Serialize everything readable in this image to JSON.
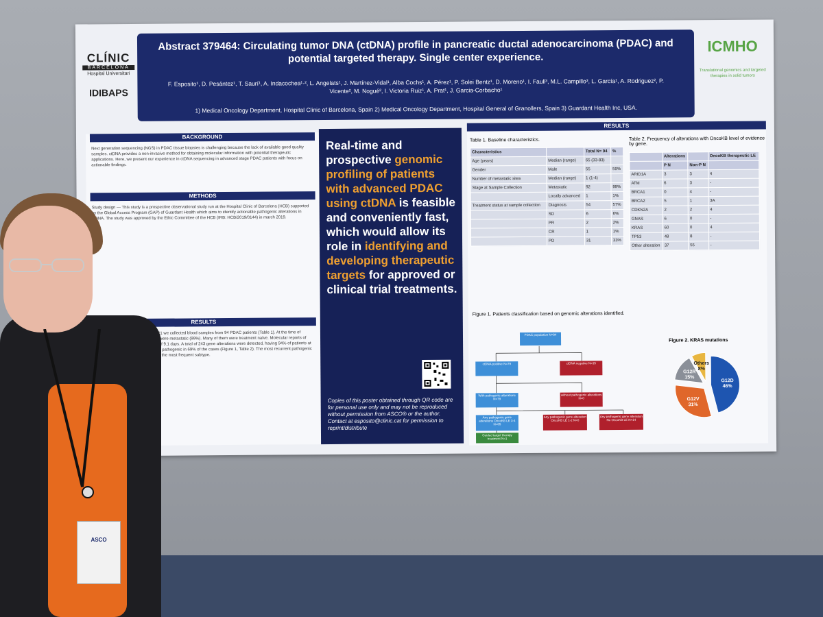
{
  "colors": {
    "navy": "#1c2a6b",
    "orange": "#f0a030",
    "accent_green": "#57a445"
  },
  "header": {
    "title": "Abstract 379464: Circulating tumor DNA (ctDNA) profile in pancreatic ductal adenocarcinoma (PDAC) and potential targeted therapy. Single center experience.",
    "authors": "F. Esposito¹, D. Pesántez¹, T. Saurí¹, A. Indacochea¹·², L. Angelats¹, J. Martínez-Vidal¹, Alba Cochs¹, A. Pérez¹, P. Solei Bentz¹, D. Moreno¹, I. Faull³, M.L. Campillo³, L. García¹, A. Rodriguez², P. Vicente², M. Nogué², I. Victoria Ruiz¹, A. Prat¹, J. Garcia-Corbacho¹",
    "affiliations": "1) Medical Oncology Department, Hospital Clinic of Barcelona, Spain 2) Medical Oncology Department, Hospital General of Granollers, Spain 3) Guardant Health Inc, USA."
  },
  "logos": {
    "left_1": "CLÍNIC",
    "left_2": "BARCELONA",
    "left_3": "Hospital Universitari",
    "left_4": "IDIBAPS",
    "right_1": "ICMHO",
    "right_2": "Translational genomics and targeted therapies in solid tumors"
  },
  "left": {
    "background_title": "BACKGROUND",
    "background_text": "Next generation sequencing (NGS) in PDAC tissue biopsies is challenging because the lack of available good quality samples. ctDNA provides a non-invasive method for obtaining molecular information with potential therapeutic applications. Here, we present our experience in ctDNA sequencing in advanced stage PDAC patients with focus on actionable findings.",
    "methods_title": "METHODS",
    "methods_text": "Study design — This study is a prospective observational study run at the Hospital Clinic of Barcelona (HCB) supported by the Global Access Program (GAP) of Guardant Health which aims to identify actionable pathogenic alterations in ctDNA. The study was approved by the Ethic Committee of the HCB (IRB: HCB/2019/0144) in march 2019.",
    "results_title": "RESULTS",
    "results_text": "From August/2019 to September/2021 we collected blood samples from 94 PDAC patients (Table 1). At the time of sample collection, nearly all patients were metastatic (99%). Many of them were treatment naïve. Molecular reports of ctDNA were available in an average of 9.1 days. A total of 243 gene alterations were detected, having 94% of patients at least 1 genomic alteration, which was pathogenic in 69% of the cases (Figure 1, Table 2). The most recurrent pathogenic alteration were KRAS and G12D was the most frequent subtype."
  },
  "middle": {
    "t1": "Real-time and prospective ",
    "h1": "genomic profiling of patients with advanced PDAC using ctDNA",
    "t2": " is feasible and conveniently fast, which would allow its role in ",
    "h2": "identifying and developing therapeutic targets",
    "t3": " for approved or clinical trial treatments.",
    "copy": "Copies of this poster obtained through QR code are for personal use only and may not be reproduced without permission from ASCO® or the author. Contact at esposito@clinic.cat for permission to reprint/distribute"
  },
  "right": {
    "results_title": "RESULTS",
    "table1_title": "Table 1. Baseline characteristics.",
    "table2_title": "Table 2. Frequency of alterations with OncoKB level of evidence by gene.",
    "fig1_title": "Figure 1. Patients classification based on genomic alterations identified.",
    "fig2_title": "Figure 2. KRAS mutations",
    "t1": {
      "hdr": [
        "Characteristics",
        "",
        "Total N= 94",
        "%"
      ],
      "rows": [
        [
          "Age (years)",
          "Median (range)",
          "65 (33-83)",
          ""
        ],
        [
          "Gender",
          "Male",
          "55",
          "59%"
        ],
        [
          "Number of metastatic sites",
          "Median (range)",
          "1 (1-4)",
          ""
        ],
        [
          "Stage at Sample Collection",
          "Metastatic",
          "92",
          "99%"
        ],
        [
          "",
          "Locally advanced",
          "1",
          "1%"
        ],
        [
          "Treatment status at sample collection",
          "Diagnosis",
          "54",
          "57%"
        ],
        [
          "",
          "SD",
          "6",
          "6%"
        ],
        [
          "",
          "PR",
          "2",
          "2%"
        ],
        [
          "",
          "CR",
          "1",
          "1%"
        ],
        [
          "",
          "PD",
          "31",
          "33%"
        ]
      ]
    },
    "t2": {
      "hdr": [
        "",
        "Alterations",
        "",
        "OncoKB therapeutic LE"
      ],
      "sub": [
        "",
        "P N",
        "Non-P N",
        ""
      ],
      "rows": [
        [
          "ARID1A",
          "3",
          "3",
          "4"
        ],
        [
          "ATM",
          "6",
          "3",
          "-"
        ],
        [
          "BRCA1",
          "0",
          "4",
          "-"
        ],
        [
          "BRCA2",
          "5",
          "1",
          "3A"
        ],
        [
          "CDKN2A",
          "2",
          "2",
          "4"
        ],
        [
          "GNAS",
          "6",
          "0",
          "-"
        ],
        [
          "KRAS",
          "60",
          "0",
          "4"
        ],
        [
          "TP53",
          "48",
          "8",
          "-"
        ],
        [
          "Other alteration",
          "37",
          "55",
          "-"
        ]
      ]
    },
    "flow": {
      "b1": "PDAC population N=94",
      "b2": "ctDNA positive N=79",
      "b3": "ctDNA negative N=15",
      "b4": "With pathogenic alterations N=79",
      "b5": "without pathogenic alterations N=0",
      "b6": "Any pathogenic gene alterations OncoKB LE 3-4 N=65",
      "b7": "Any pathogenic gene alteration OncoKB LE 1-2 N=0",
      "b8": "Any pathogenic gene alteration No OncoKB LE N=14",
      "b9": "Guided target therapy treatment N=1"
    }
  },
  "chart_data": {
    "type": "pie",
    "title": "Figure 2. KRAS mutations",
    "categories": [
      "G12D",
      "G12V",
      "G12R",
      "Others"
    ],
    "values": [
      46,
      31,
      15,
      8
    ],
    "labels": [
      "G12D 46%",
      "G12V 31%",
      "G12R 15%",
      "Others 8%"
    ],
    "colors": [
      "#1e55b0",
      "#e0672a",
      "#8a8f98",
      "#e8b640"
    ]
  },
  "badge": {
    "org": "ASCO"
  }
}
